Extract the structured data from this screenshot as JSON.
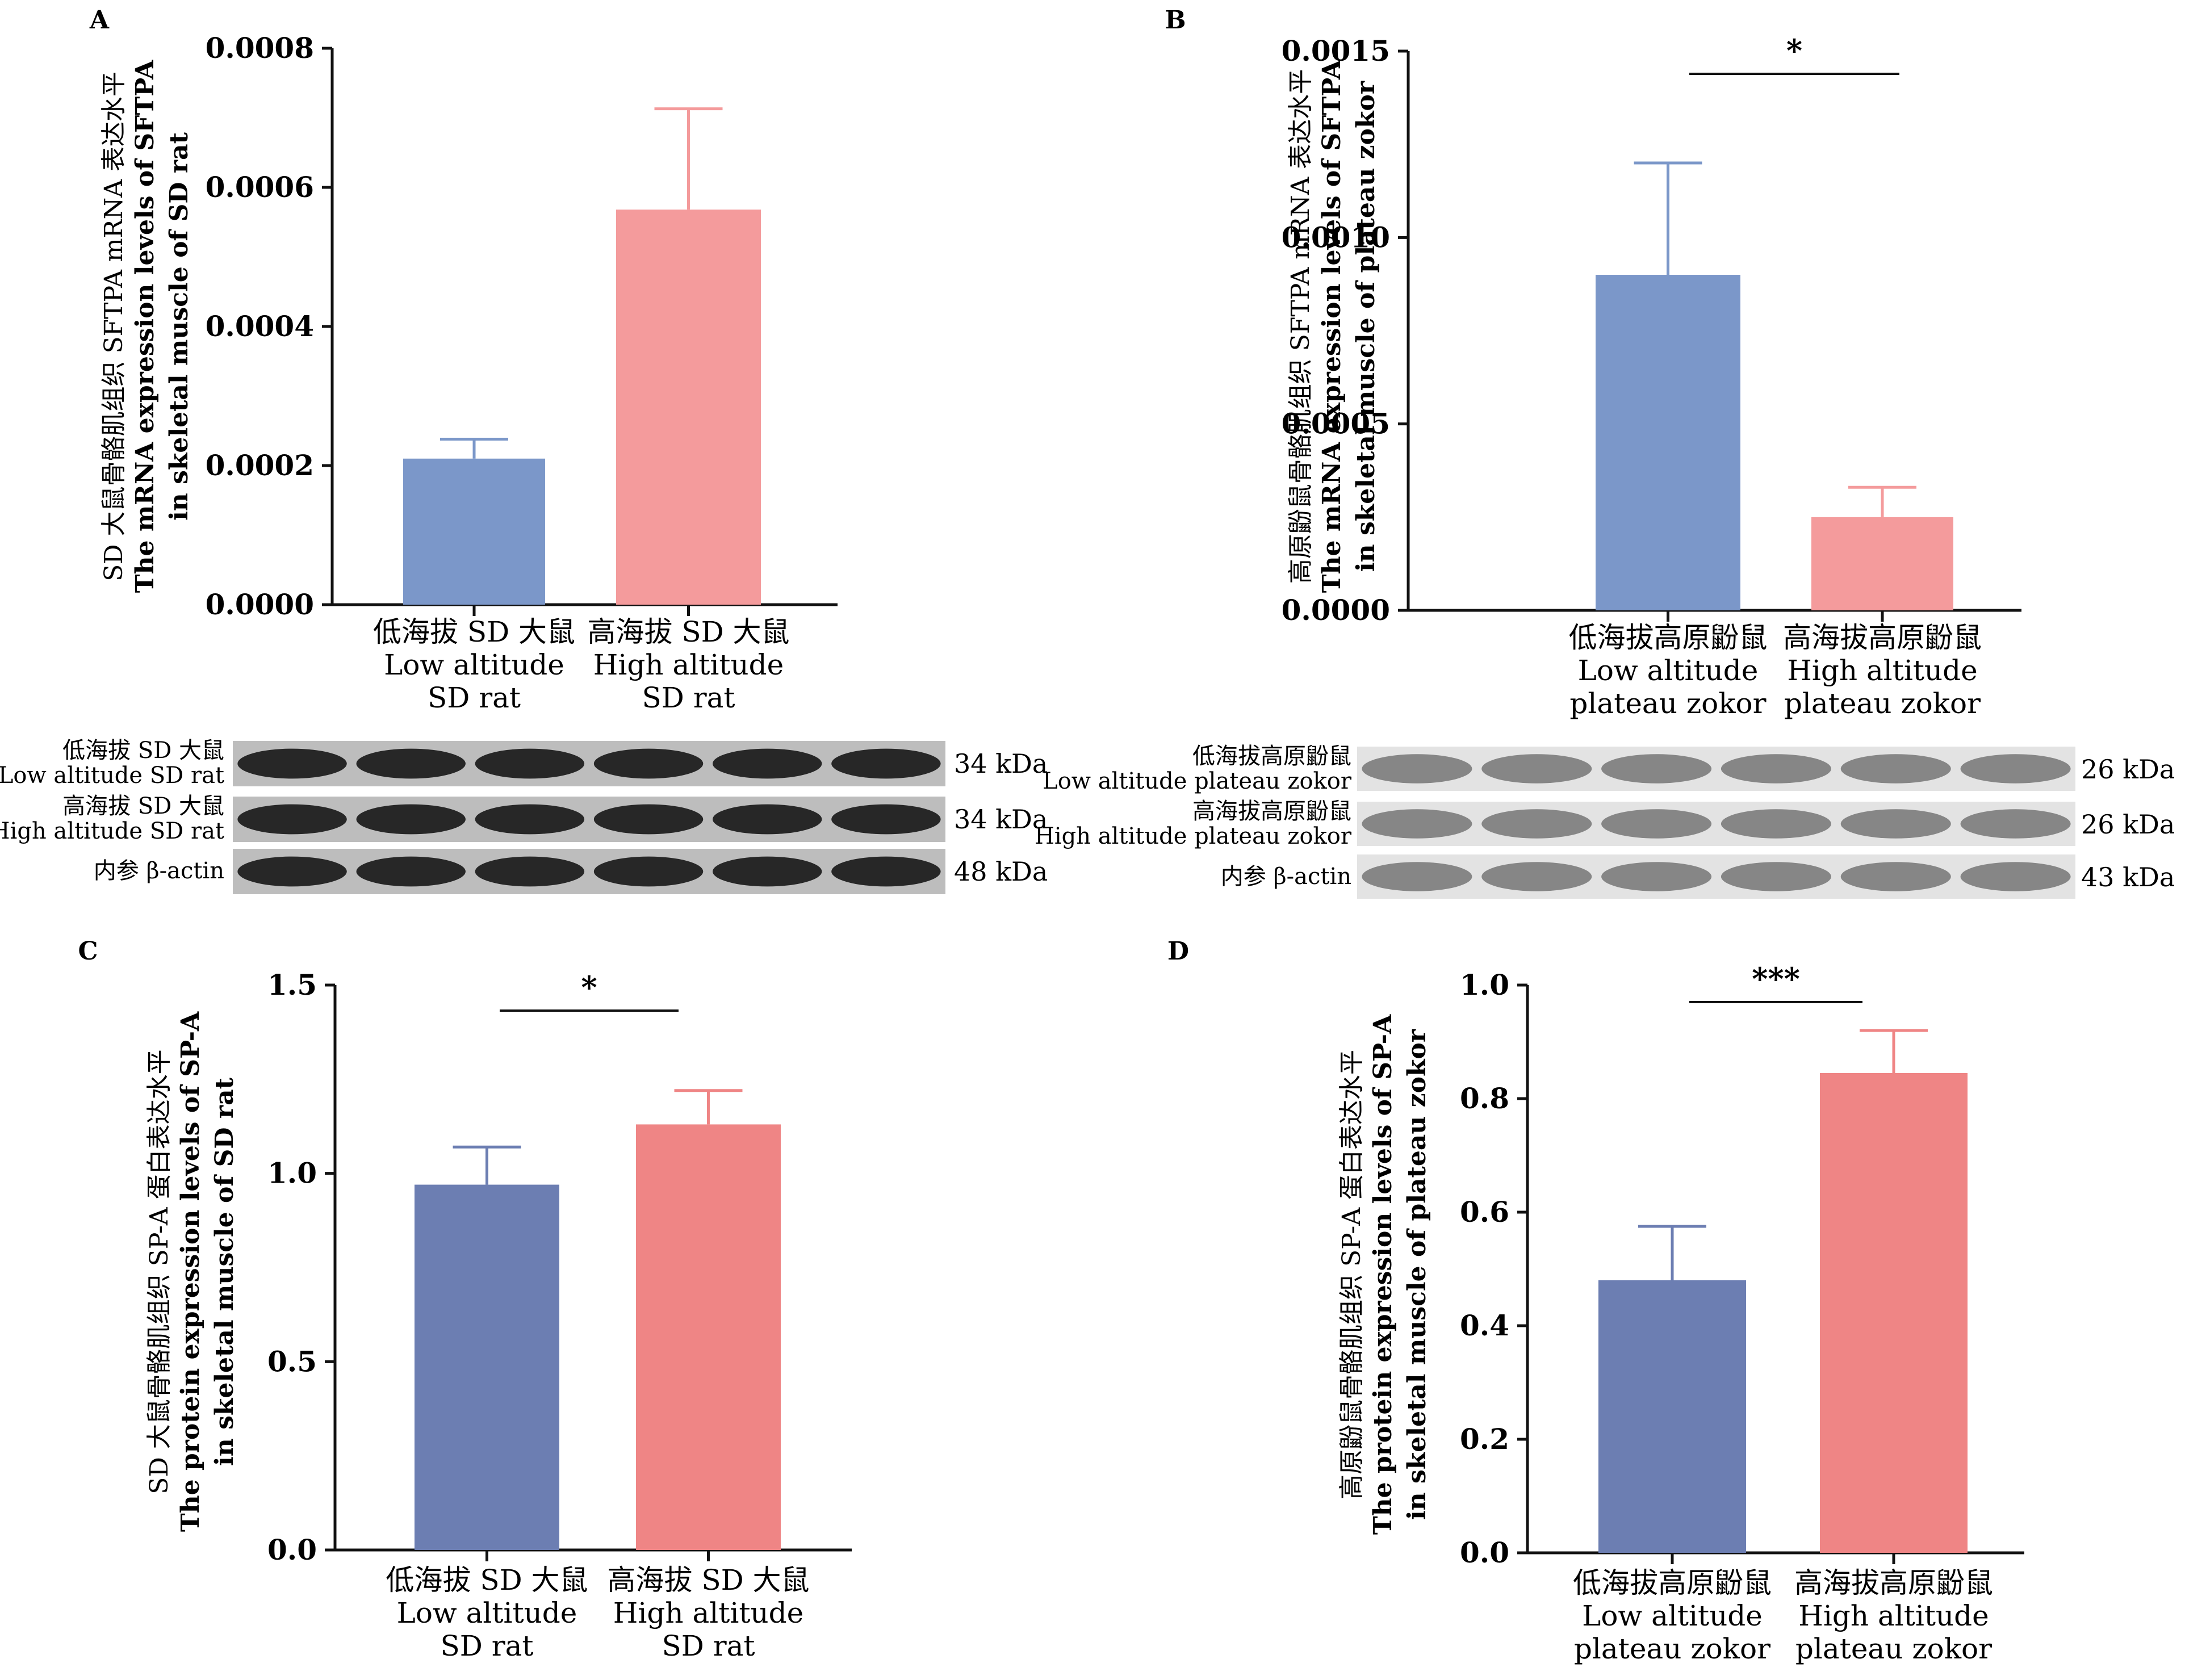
{
  "chart_data": [
    {
      "panel": "A",
      "type": "bar",
      "ylabel_lines": [
        "SD 大鼠骨骼肌组织 SFTPA mRNA 表达水平",
        "The mRNA expression levels of SFTPA",
        "in skeletal muscle of SD rat"
      ],
      "ylim": [
        0,
        0.0008
      ],
      "yticks": [
        "0.0000",
        "0.0002",
        "0.0004",
        "0.0006",
        "0.0008"
      ],
      "categories": [
        [
          "低海拔 SD 大鼠",
          "Low altitude",
          "SD rat"
        ],
        [
          "高海拔 SD 大鼠",
          "High altitude",
          "SD rat"
        ]
      ],
      "values": [
        0.00021,
        0.000568
      ],
      "errors": [
        2.8e-05,
        0.000145
      ],
      "colors": [
        "#7b97c9",
        "#f49b9c"
      ],
      "significance": ""
    },
    {
      "panel": "B",
      "type": "bar",
      "ylabel_lines": [
        "高原鼢鼠骨骼肌组织 SFTPA mRNA 表达水平",
        "The mRNA expression levels of SFTPA",
        "in skeletal muscle of plateau zokor"
      ],
      "ylim": [
        0,
        0.0015
      ],
      "yticks": [
        "0.0000",
        "0.0005",
        "0.0010",
        "0.0015"
      ],
      "categories": [
        [
          "低海拔高原鼢鼠",
          "Low altitude",
          "plateau zokor"
        ],
        [
          "高海拔高原鼢鼠",
          "High altitude",
          "plateau zokor"
        ]
      ],
      "values": [
        0.0009,
        0.00025
      ],
      "errors": [
        0.0003,
        8e-05
      ],
      "colors": [
        "#7b97c9",
        "#f49b9c"
      ],
      "significance": "*"
    },
    {
      "panel": "C",
      "type": "bar",
      "ylabel_lines": [
        "SD 大鼠骨骼肌组织 SP-A 蛋白表达水平",
        "The protein expression levels of SP-A",
        "in skeletal muscle of SD rat"
      ],
      "ylim": [
        0,
        1.5
      ],
      "yticks": [
        "0.0",
        "0.5",
        "1.0",
        "1.5"
      ],
      "categories": [
        [
          "低海拔 SD 大鼠",
          "Low altitude",
          "SD rat"
        ],
        [
          "高海拔 SD 大鼠",
          "High altitude",
          "SD rat"
        ]
      ],
      "values": [
        0.97,
        1.13
      ],
      "errors": [
        0.1,
        0.09
      ],
      "colors": [
        "#6c7eb2",
        "#ef8585"
      ],
      "significance": "*"
    },
    {
      "panel": "D",
      "type": "bar",
      "ylabel_lines": [
        "高原鼢鼠骨骼肌组织 SP-A 蛋白表达水平",
        "The protein expression levels of SP-A",
        "in skeletal muscle of plateau zokor"
      ],
      "ylim": [
        0,
        1.0
      ],
      "yticks": [
        "0.0",
        "0.2",
        "0.4",
        "0.6",
        "0.8",
        "1.0"
      ],
      "categories": [
        [
          "低海拔高原鼢鼠",
          "Low altitude",
          "plateau zokor"
        ],
        [
          "高海拔高原鼢鼠",
          "High altitude",
          "plateau zokor"
        ]
      ],
      "values": [
        0.48,
        0.845
      ],
      "errors": [
        0.095,
        0.075
      ],
      "colors": [
        "#6c7eb2",
        "#ef8585"
      ],
      "significance": "***"
    }
  ],
  "blots": [
    {
      "group": "left",
      "rows": [
        {
          "label_lines": [
            "低海拔 SD 大鼠",
            "Low altitude SD rat"
          ],
          "kda": "34 kDa"
        },
        {
          "label_lines": [
            "高海拔 SD 大鼠",
            "High altitude SD rat"
          ],
          "kda": "34 kDa"
        },
        {
          "label_lines": [
            "内参 β-actin"
          ],
          "kda": "48 kDa"
        }
      ]
    },
    {
      "group": "right",
      "rows": [
        {
          "label_lines": [
            "低海拔高原鼢鼠",
            "Low altitude plateau zokor"
          ],
          "kda": "26 kDa"
        },
        {
          "label_lines": [
            "高海拔高原鼢鼠",
            "High altitude plateau zokor"
          ],
          "kda": "26 kDa"
        },
        {
          "label_lines": [
            "内参 β-actin"
          ],
          "kda": "43 kDa"
        }
      ]
    }
  ]
}
